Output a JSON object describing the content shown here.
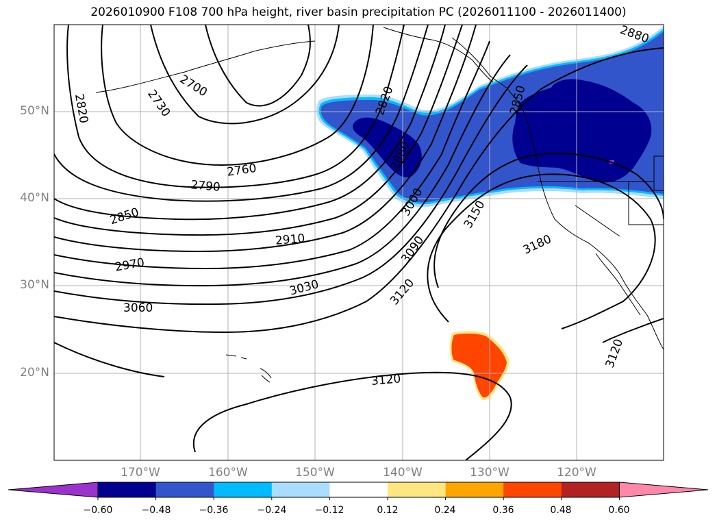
{
  "title": "2026010900 F108 700 hPa height, river basin precipitation PC (2026011100 - 2026011400)",
  "lat_labels": [
    "50°N",
    "40°N",
    "30°N",
    "20°N"
  ],
  "lon_labels": [
    "170°W",
    "160°W",
    "150°W",
    "140°W",
    "130°W",
    "120°W"
  ],
  "contour_labels": [
    "2820",
    "2700",
    "2730",
    "2760",
    "2790",
    "2850",
    "2910",
    "2970",
    "3030",
    "3060",
    "2820",
    "2880",
    "3000",
    "3090",
    "3120",
    "3150",
    "3180",
    "3120",
    "3120",
    "2880",
    "2850"
  ],
  "colorbar": {
    "ticks": [
      "−0.60",
      "−0.48",
      "−0.36",
      "−0.24",
      "−0.12",
      "0.12",
      "0.24",
      "0.36",
      "0.48",
      "0.60"
    ],
    "colors": [
      "#9933cc",
      "#000090",
      "#3355cc",
      "#00bbff",
      "#aaddff",
      "#ffffff",
      "#ffe680",
      "#ffa500",
      "#ff4500",
      "#b22222",
      "#ff88aa"
    ]
  }
}
